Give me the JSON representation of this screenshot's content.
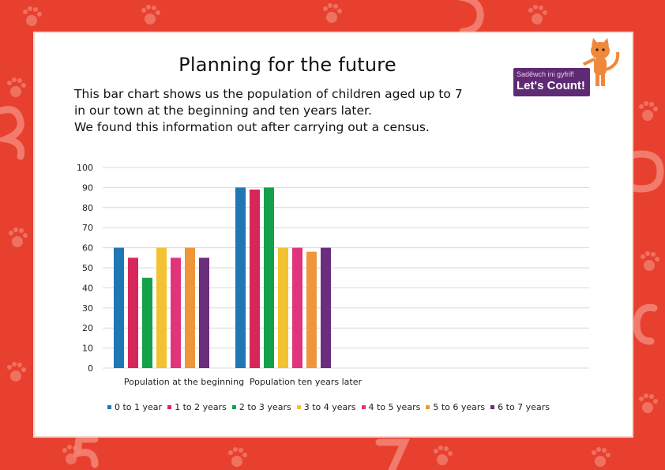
{
  "page": {
    "title": "Planning for the future",
    "description": [
      "This bar chart shows us the population of children aged up to 7",
      "in our town at the beginning and ten years later.",
      "We found this information out after carrying out a census."
    ],
    "logo": {
      "line1": "Sadêwch ini gyfrif!",
      "line2": "Let's Count!"
    }
  },
  "colors": {
    "background": "#e8402f"
  },
  "chart_data": {
    "type": "bar",
    "title": "",
    "xlabel": "",
    "ylabel": "",
    "ylim": [
      0,
      100
    ],
    "yticks": [
      0,
      10,
      20,
      30,
      40,
      50,
      60,
      70,
      80,
      90,
      100
    ],
    "grid": true,
    "legend_position": "bottom",
    "categories": [
      "Population at the beginning",
      "Population ten years later"
    ],
    "series": [
      {
        "name": "0 to 1 year",
        "color": "#1f77b4",
        "values": [
          60,
          90
        ]
      },
      {
        "name": "1 to 2 years",
        "color": "#d6275a",
        "values": [
          55,
          89
        ]
      },
      {
        "name": "2 to 3 years",
        "color": "#15a04a",
        "values": [
          45,
          90
        ]
      },
      {
        "name": "3 to 4 years",
        "color": "#f2c230",
        "values": [
          60,
          60
        ]
      },
      {
        "name": "4 to 5 years",
        "color": "#e0357a",
        "values": [
          55,
          60
        ]
      },
      {
        "name": "5 to 6 years",
        "color": "#f0963a",
        "values": [
          60,
          58
        ]
      },
      {
        "name": "6 to 7 years",
        "color": "#6b2d7e",
        "values": [
          55,
          60
        ]
      }
    ]
  }
}
